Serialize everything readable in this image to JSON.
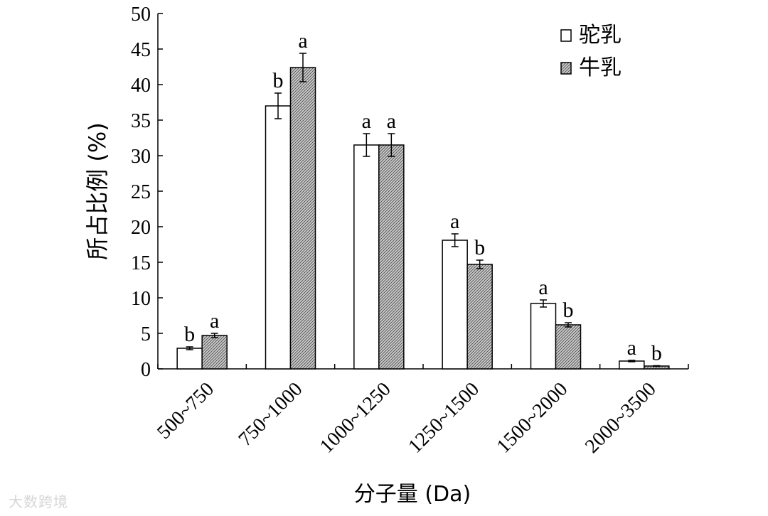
{
  "chart_data": {
    "type": "bar",
    "categories": [
      "500~750",
      "750~1000",
      "1000~1250",
      "1250~1500",
      "1500~2000",
      "2000~3500"
    ],
    "series": [
      {
        "name": "驼乳",
        "values": [
          2.9,
          37.0,
          31.5,
          18.1,
          9.2,
          1.1
        ],
        "errors": [
          0.2,
          1.8,
          1.6,
          0.9,
          0.5,
          0.1
        ],
        "letters": [
          "b",
          "b",
          "a",
          "a",
          "a",
          "a"
        ]
      },
      {
        "name": "牛乳",
        "values": [
          4.7,
          42.4,
          31.5,
          14.7,
          6.2,
          0.4
        ],
        "errors": [
          0.3,
          2.0,
          1.6,
          0.6,
          0.3,
          0.05
        ],
        "letters": [
          "a",
          "a",
          "a",
          "b",
          "b",
          "b"
        ]
      }
    ],
    "ylim": [
      0,
      50
    ],
    "yticks": [
      0,
      5,
      10,
      15,
      20,
      25,
      30,
      35,
      40,
      45,
      50
    ],
    "xlabel": "分子量 (Da)",
    "ylabel": "所占比例 (%)",
    "legend": "top-right",
    "grid": false
  },
  "watermark": "大数跨境"
}
